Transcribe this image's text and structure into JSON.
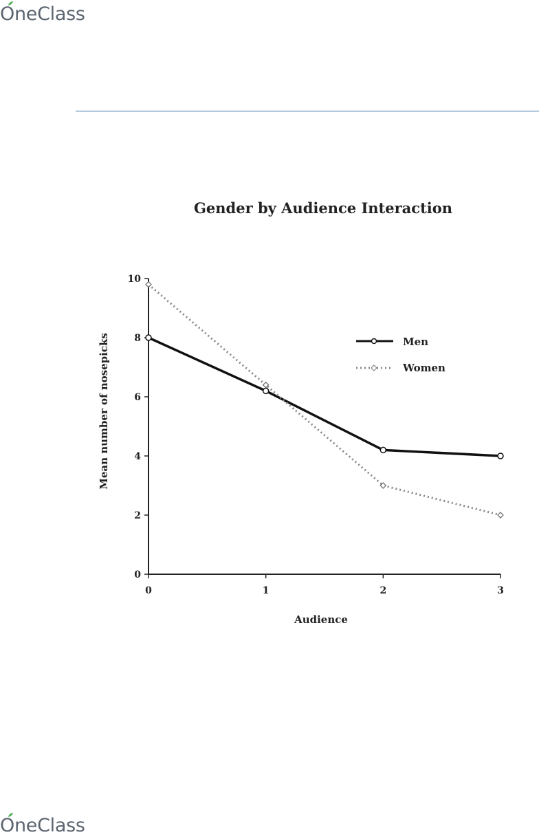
{
  "brand": {
    "name": "OneClass"
  },
  "chart_data": {
    "type": "line",
    "title": "Gender by Audience Interaction",
    "xlabel": "Audience",
    "ylabel": "Mean number of nosepicks",
    "x": [
      0,
      1,
      2,
      3
    ],
    "xticks": [
      "0",
      "1",
      "2",
      "3"
    ],
    "yticks": [
      "0",
      "2",
      "4",
      "6",
      "8",
      "10"
    ],
    "xlim": [
      0,
      3
    ],
    "ylim": [
      0,
      10
    ],
    "grid": false,
    "legend_position": "top-right",
    "series": [
      {
        "name": "Men",
        "values": [
          8,
          6.2,
          4.2,
          4
        ],
        "style": "solid",
        "marker": "circle",
        "color": "#111111"
      },
      {
        "name": "Women",
        "values": [
          9.8,
          6.4,
          3,
          2
        ],
        "style": "dotted",
        "marker": "diamond",
        "color": "#888888"
      }
    ]
  }
}
